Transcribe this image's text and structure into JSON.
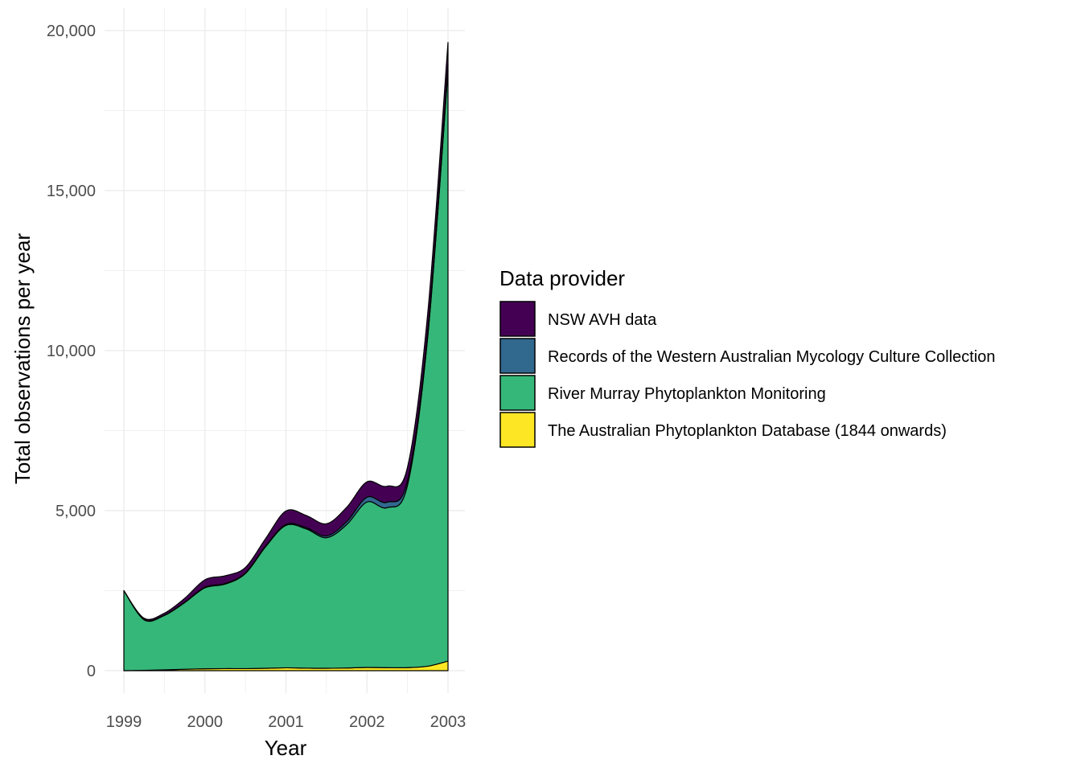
{
  "chart_data": {
    "type": "area",
    "stacked": true,
    "smoothed": true,
    "x": [
      1999,
      2000,
      2001,
      2002,
      2003
    ],
    "xlabel": "Year",
    "ylabel": "Total observations per year",
    "ylim": [
      0,
      20000
    ],
    "xlim": [
      1999,
      2003
    ],
    "x_ticks": [
      "1999",
      "2000",
      "2001",
      "2002",
      "2003"
    ],
    "y_ticks": [
      "0",
      "5,000",
      "10,000",
      "15,000",
      "20,000"
    ],
    "y_tick_values": [
      0,
      5000,
      10000,
      15000,
      20000
    ],
    "grid": true,
    "legend_title": "Data provider",
    "legend_position": "right",
    "series": [
      {
        "name": "NSW AVH data",
        "color": "#440154",
        "values": [
          0,
          230,
          420,
          480,
          680
        ],
        "points": [
          [
            1999,
            0
          ],
          [
            1999.25,
            40
          ],
          [
            1999.5,
            60
          ],
          [
            1999.75,
            120
          ],
          [
            2000,
            230
          ],
          [
            2000.25,
            240
          ],
          [
            2000.5,
            170
          ],
          [
            2000.75,
            230
          ],
          [
            2001,
            420
          ],
          [
            2001.25,
            380
          ],
          [
            2001.5,
            380
          ],
          [
            2001.75,
            450
          ],
          [
            2002,
            480
          ],
          [
            2002.25,
            500
          ],
          [
            2002.5,
            420
          ],
          [
            2002.75,
            560
          ],
          [
            2003,
            680
          ]
        ]
      },
      {
        "name": "Records of the Western Australian Mycology Culture Collection",
        "color": "#31688E",
        "values": [
          0,
          20,
          30,
          150,
          200
        ],
        "points": [
          [
            1999,
            0
          ],
          [
            1999.25,
            8
          ],
          [
            1999.5,
            12
          ],
          [
            1999.75,
            15
          ],
          [
            2000,
            20
          ],
          [
            2000.25,
            20
          ],
          [
            2000.5,
            20
          ],
          [
            2000.75,
            25
          ],
          [
            2001,
            30
          ],
          [
            2001.25,
            40
          ],
          [
            2001.5,
            55
          ],
          [
            2001.75,
            90
          ],
          [
            2002,
            150
          ],
          [
            2002.25,
            170
          ],
          [
            2002.5,
            140
          ],
          [
            2002.75,
            170
          ],
          [
            2003,
            200
          ]
        ]
      },
      {
        "name": "River Murray Phytoplankton Monitoring",
        "color": "#35B779",
        "values": [
          2500,
          2600,
          4450,
          5170,
          18450
        ],
        "points": [
          [
            1999,
            2500
          ],
          [
            1999.25,
            1580
          ],
          [
            1999.5,
            1700
          ],
          [
            1999.75,
            2080
          ],
          [
            2000,
            2530
          ],
          [
            2000.25,
            2640
          ],
          [
            2000.5,
            2970
          ],
          [
            2000.75,
            3800
          ],
          [
            2001,
            4450
          ],
          [
            2001.25,
            4350
          ],
          [
            2001.5,
            4080
          ],
          [
            2001.75,
            4480
          ],
          [
            2002,
            5170
          ],
          [
            2002.25,
            5000
          ],
          [
            2002.5,
            5700
          ],
          [
            2002.75,
            10300
          ],
          [
            2003,
            18450
          ]
        ]
      },
      {
        "name": "The Australian Phytoplankton Database (1844 onwards)",
        "color": "#FDE725",
        "values": [
          0,
          60,
          90,
          100,
          300
        ],
        "points": [
          [
            1999,
            0
          ],
          [
            1999.25,
            10
          ],
          [
            1999.5,
            25
          ],
          [
            1999.75,
            45
          ],
          [
            2000,
            60
          ],
          [
            2000.25,
            65
          ],
          [
            2000.5,
            65
          ],
          [
            2000.75,
            75
          ],
          [
            2001,
            90
          ],
          [
            2001.25,
            80
          ],
          [
            2001.5,
            75
          ],
          [
            2001.75,
            85
          ],
          [
            2002,
            100
          ],
          [
            2002.25,
            95
          ],
          [
            2002.5,
            95
          ],
          [
            2002.75,
            140
          ],
          [
            2003,
            300
          ]
        ]
      }
    ]
  }
}
